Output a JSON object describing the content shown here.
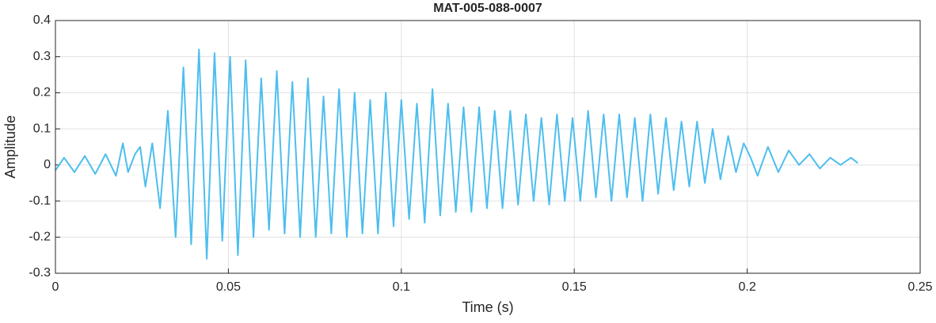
{
  "chart_data": {
    "type": "line",
    "title": "MAT-005-088-0007",
    "x_label": "Time (s)",
    "y_label": "Amplitude",
    "xlim": [
      0,
      0.25
    ],
    "xticks": [
      0,
      0.05,
      0.1,
      0.15,
      0.2,
      0.25
    ],
    "ylim": [
      -0.3,
      0.4
    ],
    "yticks": [
      -0.3,
      -0.2,
      -0.1,
      0,
      0.1,
      0.2,
      0.3,
      0.4
    ],
    "grid": true,
    "series": [
      {
        "color": "#4dbeee",
        "x": [
          0,
          0.0025,
          0.0055,
          0.0085,
          0.0115,
          0.0145,
          0.0175,
          0.0195,
          0.021,
          0.023,
          0.0245,
          0.026,
          0.028,
          0.03025,
          0.0325,
          0.03475,
          0.037,
          0.03925,
          0.0415,
          0.04375,
          0.046,
          0.04825,
          0.0505,
          0.05275,
          0.055,
          0.05725,
          0.0595,
          0.06175,
          0.064,
          0.06625,
          0.0685,
          0.07075,
          0.073,
          0.07525,
          0.0775,
          0.07975,
          0.082,
          0.08425,
          0.0865,
          0.08875,
          0.091,
          0.09325,
          0.0955,
          0.09775,
          0.1,
          0.10225,
          0.1045,
          0.10675,
          0.109,
          0.11125,
          0.1135,
          0.11575,
          0.118,
          0.12025,
          0.1225,
          0.12475,
          0.127,
          0.12925,
          0.1315,
          0.13375,
          0.136,
          0.13825,
          0.1405,
          0.14275,
          0.145,
          0.14725,
          0.1495,
          0.15175,
          0.154,
          0.15625,
          0.1585,
          0.16075,
          0.163,
          0.16525,
          0.1675,
          0.16975,
          0.172,
          0.17425,
          0.1765,
          0.17875,
          0.181,
          0.18325,
          0.1855,
          0.18775,
          0.19,
          0.19225,
          0.1945,
          0.19675,
          0.199,
          0.201,
          0.203,
          0.206,
          0.209,
          0.212,
          0.215,
          0.218,
          0.221,
          0.224,
          0.227,
          0.23,
          0.232
        ],
        "values": [
          -0.015,
          0.02,
          -0.02,
          0.025,
          -0.025,
          0.03,
          -0.03,
          0.06,
          -0.02,
          0.03,
          0.05,
          -0.06,
          0.06,
          -0.12,
          0.15,
          -0.2,
          0.27,
          -0.22,
          0.32,
          -0.26,
          0.31,
          -0.21,
          0.3,
          -0.25,
          0.29,
          -0.2,
          0.24,
          -0.18,
          0.26,
          -0.19,
          0.23,
          -0.2,
          0.24,
          -0.2,
          0.19,
          -0.19,
          0.21,
          -0.2,
          0.2,
          -0.19,
          0.18,
          -0.19,
          0.2,
          -0.17,
          0.18,
          -0.15,
          0.17,
          -0.16,
          0.21,
          -0.14,
          0.17,
          -0.13,
          0.16,
          -0.13,
          0.16,
          -0.12,
          0.15,
          -0.12,
          0.15,
          -0.11,
          0.14,
          -0.1,
          0.13,
          -0.11,
          0.14,
          -0.1,
          0.13,
          -0.1,
          0.15,
          -0.09,
          0.14,
          -0.1,
          0.14,
          -0.09,
          0.13,
          -0.1,
          0.14,
          -0.08,
          0.13,
          -0.07,
          0.12,
          -0.06,
          0.12,
          -0.05,
          0.1,
          -0.04,
          0.08,
          -0.02,
          0.06,
          0.02,
          -0.03,
          0.05,
          -0.02,
          0.04,
          0,
          0.03,
          -0.01,
          0.02,
          0,
          0.02,
          0.005
        ]
      }
    ]
  }
}
